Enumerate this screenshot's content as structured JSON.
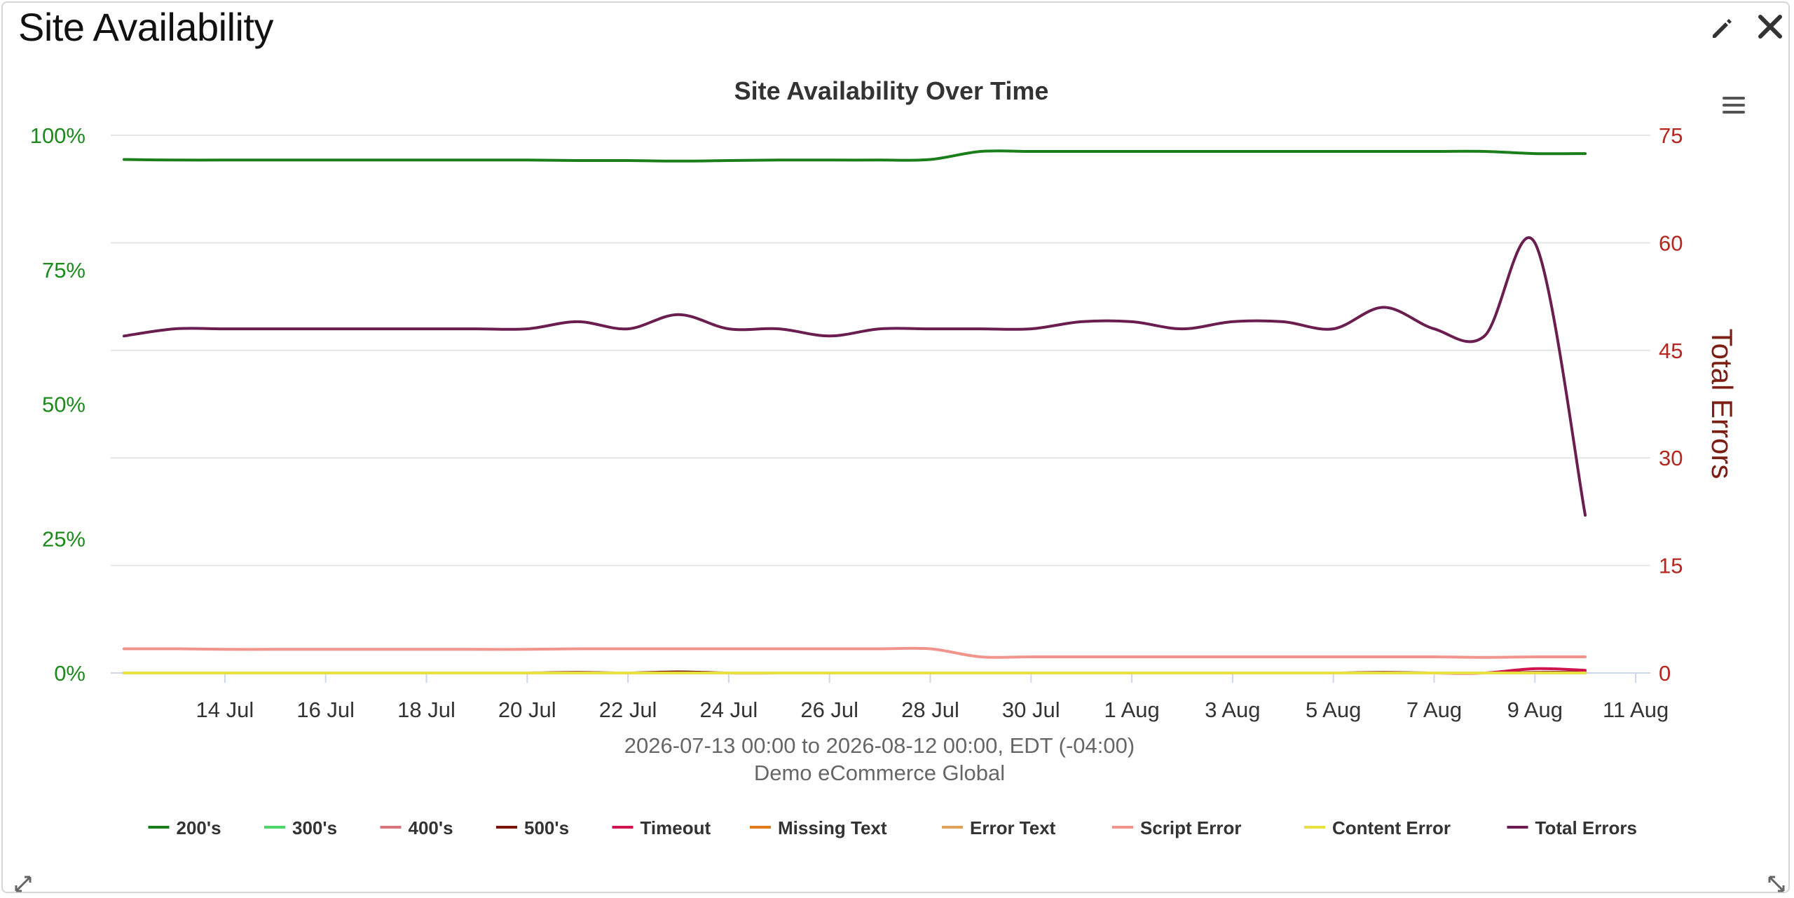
{
  "widget": {
    "title": "Site Availability",
    "icons": {
      "edit": "pencil-icon",
      "close": "close-icon",
      "menu": "hamburger-menu-icon",
      "resize": "resize-arrow-icon"
    }
  },
  "chart_data": {
    "type": "line",
    "title": "Site Availability Over Time",
    "subtitle_lines": [
      "2026-07-13 00:00 to 2026-08-12 00:00, EDT (-04:00)",
      "Demo eCommerce Global"
    ],
    "x_tick_labels": [
      "14 Jul",
      "16 Jul",
      "18 Jul",
      "20 Jul",
      "22 Jul",
      "24 Jul",
      "26 Jul",
      "28 Jul",
      "30 Jul",
      "1 Aug",
      "3 Aug",
      "5 Aug",
      "7 Aug",
      "9 Aug",
      "11 Aug"
    ],
    "x_range": [
      "2026-07-13",
      "2026-08-11"
    ],
    "y_left": {
      "ticks": [
        "0%",
        "25%",
        "50%",
        "75%",
        "100%"
      ],
      "range": [
        0,
        100
      ],
      "color": "#1e8a1e"
    },
    "y_right": {
      "label": "Total Errors",
      "ticks": [
        "0",
        "15",
        "30",
        "45",
        "60",
        "75"
      ],
      "range": [
        0,
        75
      ],
      "color": "#b5261e",
      "label_color": "#7a1f12"
    },
    "grid": true,
    "legend_position": "bottom-center",
    "x": [
      "2026-07-13",
      "2026-07-14",
      "2026-07-15",
      "2026-07-16",
      "2026-07-17",
      "2026-07-18",
      "2026-07-19",
      "2026-07-20",
      "2026-07-21",
      "2026-07-22",
      "2026-07-23",
      "2026-07-24",
      "2026-07-25",
      "2026-07-26",
      "2026-07-27",
      "2026-07-28",
      "2026-07-29",
      "2026-07-30",
      "2026-07-31",
      "2026-08-01",
      "2026-08-02",
      "2026-08-03",
      "2026-08-04",
      "2026-08-05",
      "2026-08-06",
      "2026-08-07",
      "2026-08-08",
      "2026-08-09",
      "2026-08-10",
      "2026-08-11"
    ],
    "series": [
      {
        "name": "200's",
        "color": "#1a7f1a",
        "axis": "left",
        "values": [
          95.5,
          95.4,
          95.4,
          95.4,
          95.4,
          95.4,
          95.4,
          95.4,
          95.4,
          95.3,
          95.3,
          95.2,
          95.3,
          95.4,
          95.4,
          95.4,
          95.5,
          97.0,
          97.0,
          97.0,
          97.0,
          97.0,
          97.0,
          97.0,
          97.0,
          97.0,
          97.0,
          97.0,
          96.6,
          96.6
        ]
      },
      {
        "name": "300's",
        "color": "#4fd46a",
        "axis": "left",
        "values": [
          0,
          0,
          0,
          0,
          0,
          0,
          0,
          0,
          0,
          0,
          0,
          0,
          0,
          0,
          0,
          0,
          0,
          0,
          0,
          0,
          0,
          0,
          0,
          0,
          0,
          0,
          0,
          0,
          0,
          0
        ]
      },
      {
        "name": "400's",
        "color": "#d9737c",
        "axis": "left",
        "values": [
          0,
          0,
          0,
          0,
          0,
          0,
          0,
          0,
          0,
          0,
          0,
          0,
          0,
          0,
          0,
          0,
          0,
          0,
          0,
          0,
          0,
          0,
          0,
          0,
          0,
          0,
          0,
          0,
          0,
          0
        ]
      },
      {
        "name": "500's",
        "color": "#7a1408",
        "axis": "left",
        "values": [
          0,
          0,
          0,
          0,
          0,
          0,
          0,
          0,
          0,
          0.1,
          0,
          0.2,
          0,
          0,
          0,
          0,
          0,
          0,
          0,
          0,
          0,
          0,
          0,
          0,
          0,
          0.1,
          0,
          0,
          0.1,
          0.1
        ]
      },
      {
        "name": "Timeout",
        "color": "#d0154e",
        "axis": "left",
        "values": [
          0,
          0,
          0,
          0,
          0,
          0,
          0,
          0,
          0,
          0,
          0,
          0,
          0,
          0,
          0,
          0,
          0,
          0,
          0,
          0,
          0,
          0,
          0,
          0,
          0,
          0,
          0,
          0,
          0.8,
          0.5
        ]
      },
      {
        "name": "Missing Text",
        "color": "#e07a1a",
        "axis": "left",
        "values": [
          0,
          0,
          0,
          0,
          0,
          0,
          0,
          0,
          0,
          0,
          0,
          0,
          0,
          0,
          0,
          0,
          0,
          0,
          0,
          0,
          0,
          0,
          0,
          0,
          0,
          0,
          0,
          0,
          0,
          0
        ]
      },
      {
        "name": "Error Text",
        "color": "#e0a25a",
        "axis": "left",
        "values": [
          0,
          0,
          0,
          0,
          0,
          0,
          0,
          0,
          0,
          0,
          0,
          0,
          0,
          0,
          0,
          0,
          0,
          0,
          0,
          0,
          0,
          0,
          0,
          0,
          0,
          0,
          0,
          0,
          0,
          0
        ]
      },
      {
        "name": "Script Error",
        "color": "#f0948c",
        "axis": "left",
        "values": [
          4.5,
          4.5,
          4.4,
          4.4,
          4.4,
          4.4,
          4.4,
          4.4,
          4.4,
          4.5,
          4.5,
          4.5,
          4.5,
          4.5,
          4.5,
          4.5,
          4.5,
          3.0,
          3.0,
          3.0,
          3.0,
          3.0,
          3.0,
          3.0,
          3.0,
          3.0,
          3.0,
          2.9,
          3.0,
          3.0
        ]
      },
      {
        "name": "Content Error",
        "color": "#e8e040",
        "axis": "left",
        "values": [
          0,
          0,
          0,
          0,
          0,
          0,
          0,
          0,
          0,
          0,
          0,
          0,
          0,
          0,
          0,
          0,
          0,
          0,
          0,
          0,
          0,
          0,
          0,
          0,
          0,
          0,
          0,
          0,
          0,
          0
        ]
      },
      {
        "name": "Total Errors",
        "color": "#6a1d4f",
        "axis": "right",
        "values": [
          47,
          48,
          48,
          48,
          48,
          48,
          48,
          48,
          48,
          49,
          48,
          50,
          48,
          48,
          47,
          48,
          48,
          48,
          48,
          49,
          49,
          48,
          49,
          49,
          48,
          51,
          48,
          47,
          60,
          22
        ]
      }
    ]
  }
}
